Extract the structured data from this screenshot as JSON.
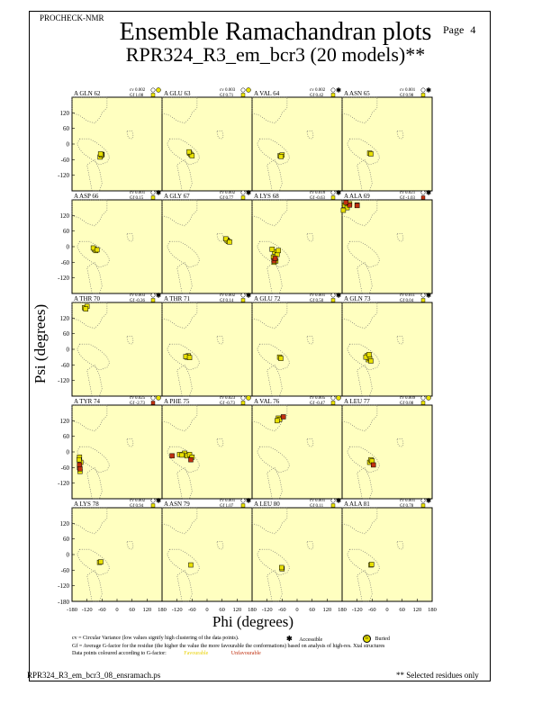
{
  "header": {
    "program": "PROCHECK-NMR",
    "title": "Ensemble Ramachandran plots",
    "subtitle": "RPR324_R3_em_bcr3 (20 models)**",
    "page_label": "Page",
    "page_number": "4"
  },
  "colors": {
    "panel_bg": "#FFFFC0",
    "favourable": "#E8E000",
    "unfavourable": "#C03010",
    "grid": "#666666"
  },
  "chart_data": {
    "type": "scatter",
    "xlabel": "Phi (degrees)",
    "ylabel": "Psi (degrees)",
    "xlim": [
      -180,
      180
    ],
    "ylim": [
      -180,
      180
    ],
    "y_ticks": [
      "120",
      "60",
      "0",
      "-60",
      "-120"
    ],
    "x_ticks_labels": [
      "-180",
      "-120",
      "-60",
      "0",
      "60",
      "120",
      "180"
    ],
    "x_tick_values": [
      -180,
      -120,
      -60,
      0,
      60,
      120,
      180
    ],
    "y_tick_values": [
      120,
      60,
      0,
      -60,
      -120
    ],
    "bottom_y_label": "-180",
    "panel_x_tick_labels": [
      "-180",
      "-120",
      "-60",
      "0",
      "60",
      "120",
      "180"
    ],
    "panels": [
      {
        "label": "A GLN 62",
        "cv": "cv 0.002",
        "gf": "Gf  1.08",
        "acc": "buried",
        "pts": [
          [
            -65,
            -45
          ],
          [
            -60,
            -40
          ],
          [
            -68,
            -50
          ],
          [
            -62,
            -42
          ],
          [
            -66,
            -38
          ]
        ]
      },
      {
        "label": "A GLU 63",
        "cv": "cv 0.003",
        "gf": "Gf  0.71",
        "acc": "buried",
        "pts": [
          [
            -70,
            -35
          ],
          [
            -65,
            -40
          ],
          [
            -60,
            -45
          ],
          [
            -72,
            -30
          ]
        ]
      },
      {
        "label": "A VAL 64",
        "cv": "cv 0.002",
        "gf": "Gf  0.42",
        "acc": "accessible",
        "pts": [
          [
            -68,
            -45
          ],
          [
            -60,
            -42
          ],
          [
            -64,
            -48
          ]
        ]
      },
      {
        "label": "A ASN 65",
        "cv": "cv 0.001",
        "gf": "Gf  0.98",
        "acc": "accessible",
        "pts": [
          [
            -70,
            -35
          ],
          [
            -65,
            -38
          ]
        ]
      },
      {
        "label": "A ASP 66",
        "cv": "cv 0.001",
        "gf": "Gf  0.15",
        "acc": "accessible",
        "pts": [
          [
            -90,
            -10
          ],
          [
            -85,
            -15
          ],
          [
            -95,
            -5
          ],
          [
            -80,
            -12
          ]
        ]
      },
      {
        "label": "A GLY 67",
        "cv": "cv 0.002",
        "gf": "Gf  0.77",
        "acc": "accessible",
        "pts": [
          [
            80,
            25
          ],
          [
            85,
            20
          ],
          [
            75,
            30
          ],
          [
            90,
            18
          ]
        ]
      },
      {
        "label": "A LYS 68",
        "cv": "cv 0.016",
        "gf": "Gf -0.63",
        "acc": "accessible",
        "pts": [
          [
            -90,
            -20
          ],
          [
            -95,
            -40
          ],
          [
            -85,
            -55
          ],
          [
            -100,
            -10
          ],
          [
            -80,
            -30
          ],
          [
            -75,
            -15
          ],
          [
            -92,
            -60
          ]
        ],
        "red": [
          [
            -92,
            -55
          ],
          [
            -88,
            -45
          ]
        ]
      },
      {
        "label": "A ALA 69",
        "cv": "cv 0.021",
        "gf": "Gf -1.03",
        "acc": "accessible",
        "pts": [
          [
            -170,
            160
          ],
          [
            -150,
            165
          ],
          [
            -160,
            150
          ],
          [
            -120,
            160
          ],
          [
            -175,
            140
          ]
        ],
        "red": [
          [
            -120,
            158
          ],
          [
            -150,
            160
          ],
          [
            -165,
            170
          ]
        ]
      },
      {
        "label": "A THR 70",
        "cv": "cv 0.003",
        "gf": "Gf -0.36",
        "acc": "accessible",
        "pts": [
          [
            -130,
            160
          ],
          [
            -120,
            165
          ],
          [
            -125,
            155
          ]
        ]
      },
      {
        "label": "A THR 71",
        "cv": "cv 0.002",
        "gf": "Gf  0.14",
        "acc": "accessible",
        "pts": [
          [
            -80,
            -30
          ],
          [
            -75,
            -25
          ],
          [
            -85,
            -28
          ],
          [
            -70,
            -32
          ]
        ]
      },
      {
        "label": "A GLU 72",
        "cv": "cv 0.001",
        "gf": "Gf  0.50",
        "acc": "accessible",
        "pts": [
          [
            -70,
            -30
          ],
          [
            -65,
            -35
          ]
        ]
      },
      {
        "label": "A GLN 73",
        "cv": "cv 0.011",
        "gf": "Gf  0.04",
        "acc": "accessible",
        "pts": [
          [
            -80,
            -25
          ],
          [
            -75,
            -40
          ],
          [
            -70,
            -35
          ],
          [
            -85,
            -30
          ],
          [
            -65,
            -45
          ],
          [
            -72,
            -20
          ]
        ]
      },
      {
        "label": "A TYR 74",
        "cv": "cv 0.025",
        "gf": "Gf -2.73",
        "acc": "buried",
        "pts": [
          [
            -150,
            -20
          ],
          [
            -145,
            -40
          ],
          [
            -150,
            -60
          ],
          [
            -148,
            -75
          ],
          [
            -152,
            -30
          ]
        ],
        "red": [
          [
            -150,
            -50
          ],
          [
            -148,
            -65
          ]
        ]
      },
      {
        "label": "A PHE 75",
        "cv": "cv 0.023",
        "gf": "Gf -0.73",
        "acc": "buried",
        "pts": [
          [
            -110,
            -10
          ],
          [
            -90,
            -5
          ],
          [
            -80,
            -15
          ],
          [
            -70,
            -10
          ],
          [
            -60,
            -20
          ],
          [
            -100,
            -12
          ]
        ],
        "red": [
          [
            -140,
            -15
          ],
          [
            -65,
            -30
          ]
        ]
      },
      {
        "label": "A VAL 76",
        "cv": "cv 0.005",
        "gf": "Gf -0.47",
        "acc": "buried",
        "pts": [
          [
            -75,
            130
          ],
          [
            -70,
            125
          ],
          [
            -80,
            120
          ]
        ],
        "red": [
          [
            -55,
            135
          ]
        ]
      },
      {
        "label": "A LEU 77",
        "cv": "cv 0.009",
        "gf": "Gf  0.08",
        "acc": "buried",
        "pts": [
          [
            -70,
            -40
          ],
          [
            -65,
            -30
          ],
          [
            -60,
            -35
          ]
        ],
        "red": [
          [
            -55,
            -50
          ]
        ]
      },
      {
        "label": "A LYS 78",
        "cv": "cv 0.002",
        "gf": "Gf  0.94",
        "acc": "accessible",
        "pts": [
          [
            -70,
            -30
          ],
          [
            -65,
            -28
          ]
        ]
      },
      {
        "label": "A ASN 79",
        "cv": "cv 0.001",
        "gf": "Gf  1.07",
        "acc": "accessible",
        "pts": [
          [
            -65,
            -40
          ]
        ]
      },
      {
        "label": "A LEU 80",
        "cv": "cv 0.001",
        "gf": "Gf  0.11",
        "acc": "accessible",
        "pts": [
          [
            -60,
            -55
          ],
          [
            -62,
            -50
          ]
        ]
      },
      {
        "label": "A ALA 81",
        "cv": "cv 0.001",
        "gf": "Gf  0.78",
        "acc": "accessible",
        "pts": [
          [
            -65,
            -40
          ],
          [
            -62,
            -38
          ]
        ]
      }
    ]
  },
  "legend": {
    "cv_text": "cv = Circular Variance (low values signify high clustering of the data points).",
    "accessible": "Accessible",
    "buried": "Buried",
    "gf_text": "Gf = Average G-factor for the residue (the higher the value the more favourable the conformations) based on analysis of high-res. Xtal structures",
    "colour_text": "Data points coloured according to G-factor:",
    "favourable": "Favourable",
    "unfavourable": "Unfavourable"
  },
  "footer": {
    "filename": "RPR324_R3_em_bcr3_08_ensramach.ps",
    "note": "** Selected residues only"
  }
}
